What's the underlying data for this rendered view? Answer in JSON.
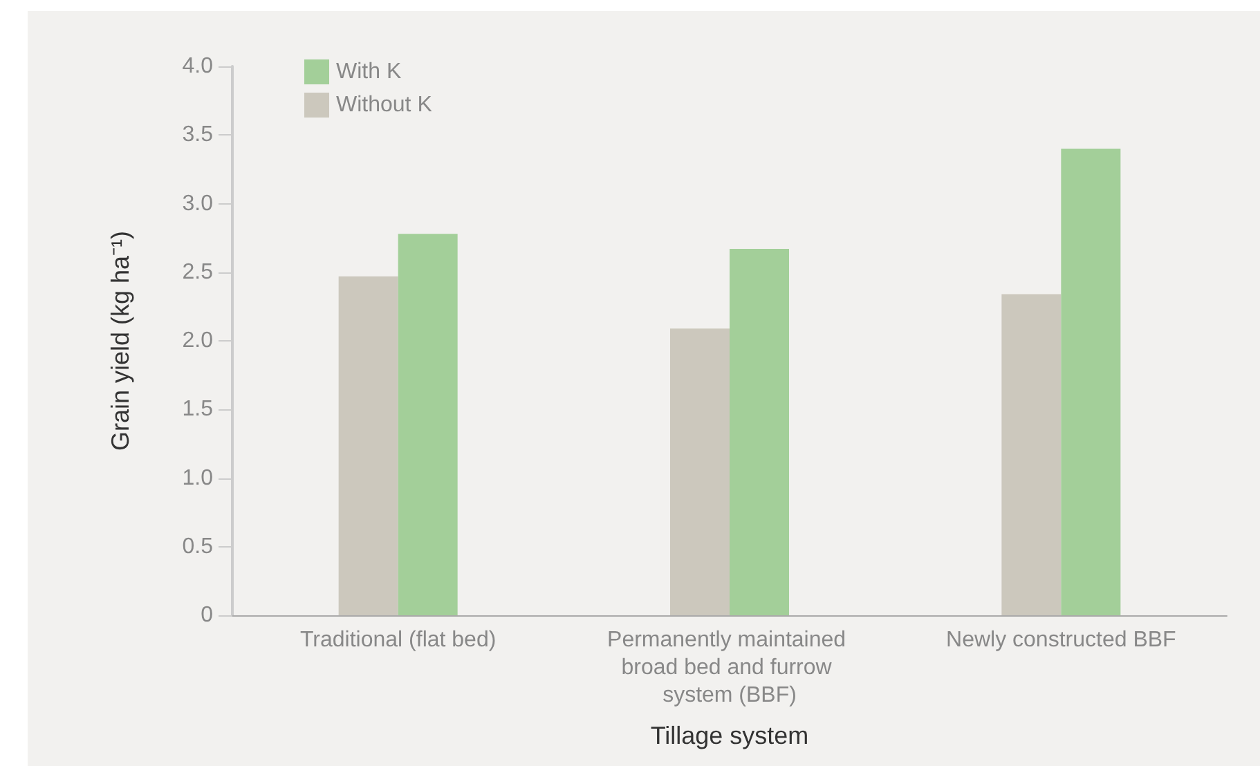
{
  "chart_data": {
    "type": "bar",
    "xlabel": "Tillage system",
    "ylabel": "Grain yield (kg ha⁻¹)",
    "categories": [
      "Traditional (flat bed)",
      "Permanently maintained broad bed and furrow system (BBF)",
      "Newly constructed BBF"
    ],
    "series": [
      {
        "name": "Without K",
        "color": "#ccc8bd",
        "values": [
          2.47,
          2.09,
          2.34
        ]
      },
      {
        "name": "With K",
        "color": "#a3cf99",
        "values": [
          2.78,
          2.67,
          3.4
        ]
      }
    ],
    "ylim": [
      0,
      4
    ],
    "yticks": [
      {
        "value": 0,
        "label": "0"
      },
      {
        "value": 0.5,
        "label": "0.5"
      },
      {
        "value": 1,
        "label": "1.0"
      },
      {
        "value": 1.5,
        "label": "1.5"
      },
      {
        "value": 2,
        "label": "2.0"
      },
      {
        "value": 2.5,
        "label": "2.5"
      },
      {
        "value": 3,
        "label": "3.0"
      },
      {
        "value": 3.5,
        "label": "3.5"
      },
      {
        "value": 4,
        "label": "4.0"
      }
    ],
    "grid": false,
    "legend": "top left"
  }
}
